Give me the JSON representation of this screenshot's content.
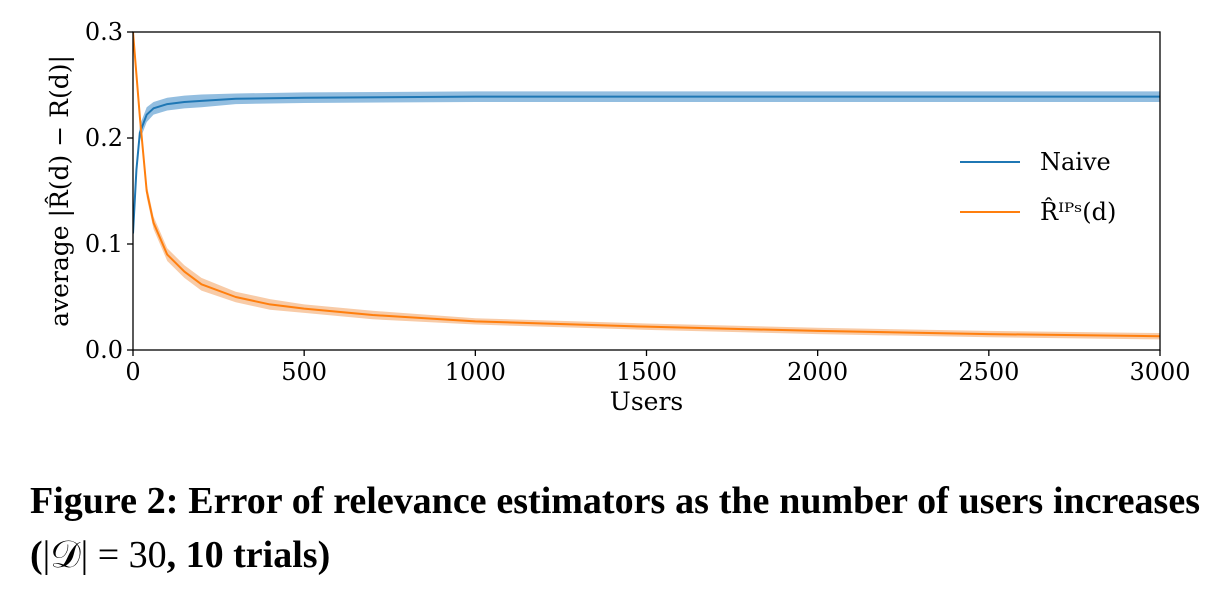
{
  "chart_data": {
    "type": "line",
    "xlabel": "Users",
    "ylabel": "average |R̂(d) − R(d)|",
    "xlim": [
      0,
      3000
    ],
    "ylim": [
      0,
      0.3
    ],
    "xticks": [
      "0",
      "500",
      "1000",
      "1500",
      "2000",
      "2500",
      "3000"
    ],
    "yticks": [
      "0.0",
      "0.1",
      "0.2",
      "0.3"
    ],
    "grid": false,
    "legend_position": "right",
    "series": [
      {
        "name": "Naive",
        "color": "#1f77b4",
        "band_color": "#6fa8d6",
        "x": [
          0,
          10,
          20,
          40,
          60,
          100,
          150,
          200,
          300,
          500,
          1000,
          1500,
          2000,
          2500,
          3000
        ],
        "y": [
          0.11,
          0.17,
          0.205,
          0.222,
          0.228,
          0.232,
          0.234,
          0.235,
          0.237,
          0.238,
          0.239,
          0.239,
          0.239,
          0.239,
          0.239
        ],
        "spread": [
          0.004,
          0.006,
          0.007,
          0.007,
          0.006,
          0.006,
          0.006,
          0.006,
          0.005,
          0.005,
          0.005,
          0.005,
          0.005,
          0.005,
          0.005
        ]
      },
      {
        "name": "R̂ᴵᴾˢ(d)",
        "color": "#ff7f0e",
        "band_color": "#f6b98a",
        "x": [
          0,
          10,
          20,
          40,
          60,
          100,
          150,
          200,
          300,
          400,
          500,
          700,
          1000,
          1500,
          2000,
          2500,
          3000
        ],
        "y": [
          0.3,
          0.26,
          0.22,
          0.15,
          0.12,
          0.09,
          0.074,
          0.062,
          0.05,
          0.043,
          0.039,
          0.033,
          0.027,
          0.022,
          0.018,
          0.015,
          0.013
        ],
        "spread": [
          0.006,
          0.006,
          0.006,
          0.006,
          0.006,
          0.006,
          0.006,
          0.006,
          0.005,
          0.005,
          0.004,
          0.004,
          0.003,
          0.003,
          0.003,
          0.003,
          0.003
        ]
      }
    ]
  },
  "caption": {
    "lead": "Figure 2: Error of relevance estimators as the number of users increases (",
    "math": "|𝒟| = 30",
    "tail": ", 10 trials)"
  }
}
